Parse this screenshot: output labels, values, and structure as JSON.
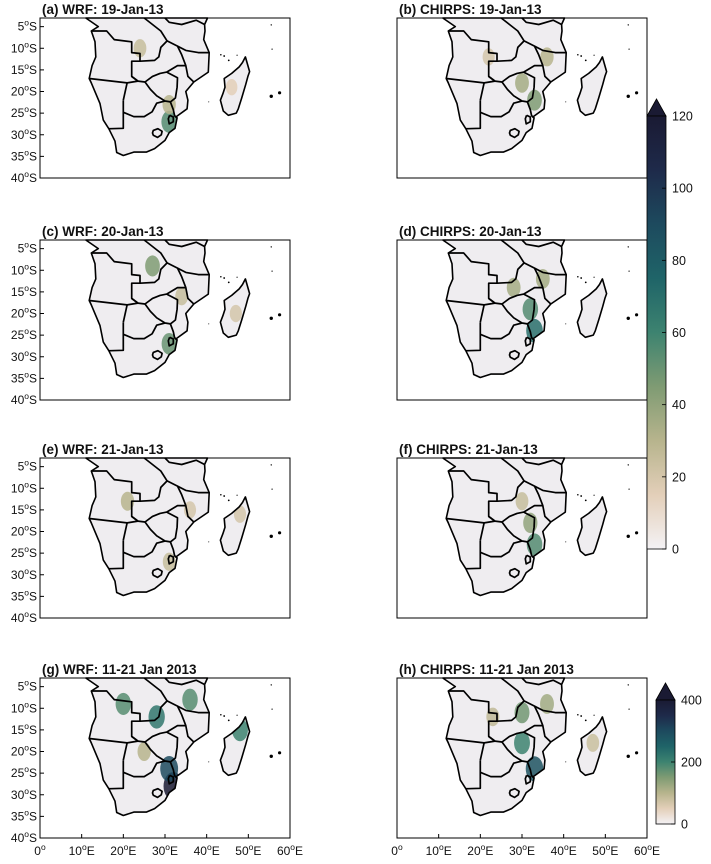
{
  "chart_data": {
    "type": "heatmap",
    "colormap": [
      "#f4f2f5",
      "#e3cfb9",
      "#b7b48d",
      "#7f9b73",
      "#3d8370",
      "#1f6468",
      "#1d4a5e",
      "#1e2a4a",
      "#1a1a33"
    ],
    "panels": [
      {
        "label": "(a) WRF: 19-Jan-13",
        "colorbar": "daily",
        "y_axis": true,
        "x_axis": false,
        "rain": [
          {
            "lon": 31,
            "lat": -27,
            "v": 55
          },
          {
            "lon": 31,
            "lat": -23,
            "v": 30
          },
          {
            "lon": 24,
            "lat": -10,
            "v": 25
          },
          {
            "lon": 46,
            "lat": -19,
            "v": 15
          }
        ]
      },
      {
        "label": "(b) CHIRPS: 19-Jan-13",
        "colorbar": "daily",
        "y_axis": false,
        "x_axis": false,
        "rain": [
          {
            "lon": 33,
            "lat": -22,
            "v": 45
          },
          {
            "lon": 30,
            "lat": -18,
            "v": 35
          },
          {
            "lon": 36,
            "lat": -12,
            "v": 30
          },
          {
            "lon": 22,
            "lat": -12,
            "v": 20
          }
        ]
      },
      {
        "label": "(c) WRF: 20-Jan-13",
        "colorbar": "daily",
        "y_axis": true,
        "x_axis": false,
        "rain": [
          {
            "lon": 31,
            "lat": -27,
            "v": 50
          },
          {
            "lon": 27,
            "lat": -9,
            "v": 45
          },
          {
            "lon": 34,
            "lat": -16,
            "v": 25
          },
          {
            "lon": 47,
            "lat": -20,
            "v": 20
          }
        ]
      },
      {
        "label": "(d) CHIRPS: 20-Jan-13",
        "colorbar": "daily",
        "y_axis": false,
        "x_axis": false,
        "rain": [
          {
            "lon": 33,
            "lat": -24,
            "v": 70
          },
          {
            "lon": 32,
            "lat": -19,
            "v": 55
          },
          {
            "lon": 28,
            "lat": -14,
            "v": 35
          },
          {
            "lon": 35,
            "lat": -12,
            "v": 35
          }
        ]
      },
      {
        "label": "(e) WRF: 21-Jan-13",
        "colorbar": "daily",
        "y_axis": true,
        "x_axis": false,
        "rain": [
          {
            "lon": 21,
            "lat": -13,
            "v": 30
          },
          {
            "lon": 31,
            "lat": -27,
            "v": 25
          },
          {
            "lon": 36,
            "lat": -15,
            "v": 20
          },
          {
            "lon": 48,
            "lat": -16,
            "v": 20
          }
        ]
      },
      {
        "label": "(f) CHIRPS: 21-Jan-13",
        "colorbar": "daily",
        "y_axis": false,
        "x_axis": false,
        "rain": [
          {
            "lon": 33,
            "lat": -23,
            "v": 55
          },
          {
            "lon": 32,
            "lat": -18,
            "v": 40
          },
          {
            "lon": 30,
            "lat": -13,
            "v": 25
          }
        ]
      },
      {
        "label": "(g) WRF: 11-21 Jan 2013",
        "colorbar": "total",
        "y_axis": true,
        "x_axis": true,
        "rain": [
          {
            "lon": 32,
            "lat": -28,
            "v": 400
          },
          {
            "lon": 31,
            "lat": -24,
            "v": 300
          },
          {
            "lon": 28,
            "lat": -12,
            "v": 220
          },
          {
            "lon": 20,
            "lat": -9,
            "v": 180
          },
          {
            "lon": 36,
            "lat": -8,
            "v": 180
          },
          {
            "lon": 48,
            "lat": -15,
            "v": 200
          },
          {
            "lon": 25,
            "lat": -20,
            "v": 100
          }
        ]
      },
      {
        "label": "(h) CHIRPS: 11-21 Jan 2013",
        "colorbar": "total",
        "y_axis": false,
        "x_axis": true,
        "rain": [
          {
            "lon": 33,
            "lat": -24,
            "v": 280
          },
          {
            "lon": 30,
            "lat": -18,
            "v": 200
          },
          {
            "lon": 30,
            "lat": -11,
            "v": 160
          },
          {
            "lon": 36,
            "lat": -9,
            "v": 120
          },
          {
            "lon": 23,
            "lat": -12,
            "v": 90
          },
          {
            "lon": 47,
            "lat": -18,
            "v": 80
          }
        ]
      }
    ],
    "y_ticks": [
      "5°S",
      "10°S",
      "15°S",
      "20°S",
      "25°S",
      "30°S",
      "35°S",
      "40°S"
    ],
    "x_ticks": [
      "0°",
      "10°E",
      "20°E",
      "30°E",
      "40°E",
      "50°E",
      "60°E"
    ],
    "lon_range": [
      0,
      60
    ],
    "lat_range": [
      -40,
      -3
    ],
    "colorbar_daily": {
      "range": [
        0,
        120
      ],
      "ticks": [
        0,
        20,
        40,
        60,
        80,
        100,
        120
      ],
      "extend": "max"
    },
    "colorbar_total": {
      "range": [
        0,
        400
      ],
      "ticks": [
        0,
        200,
        400
      ],
      "extend": "max"
    }
  }
}
